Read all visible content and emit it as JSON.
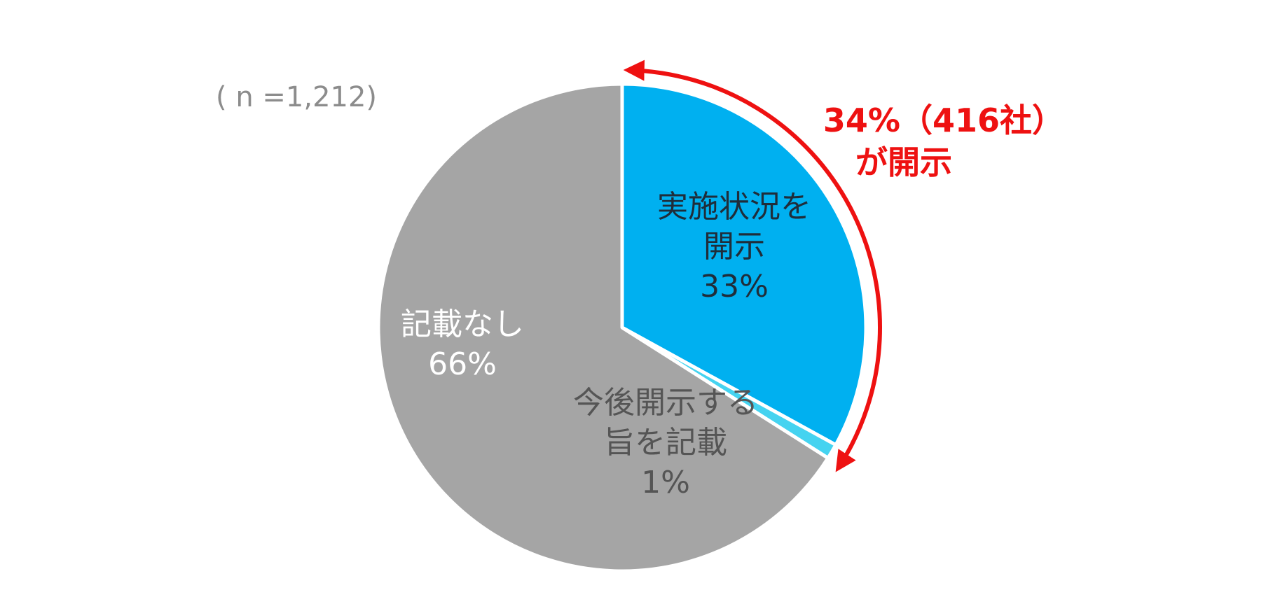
{
  "chart_data": {
    "type": "pie",
    "title": "",
    "sample_note": "( n =1,212)",
    "slices": [
      {
        "name_lines": [
          "実施状況を",
          "開示"
        ],
        "value": 33,
        "label": "33%",
        "color": "#00b0f0",
        "text_color": "#1f2d3a"
      },
      {
        "name_lines": [
          "今後開示する",
          "旨を記載"
        ],
        "value": 1,
        "label": "1%",
        "color": "#45d3f0",
        "text_color": "#555555"
      },
      {
        "name_lines": [
          "記載なし"
        ],
        "value": 66,
        "label": "66%",
        "color": "#a5a5a5",
        "text_color": "#ffffff"
      }
    ],
    "start_angle_deg": 0,
    "direction": "clockwise",
    "callout": {
      "lines": [
        "34%（416社）",
        "が開示"
      ],
      "covers_slices": [
        0,
        1
      ],
      "color": "#ee1111"
    },
    "legend": "none"
  }
}
